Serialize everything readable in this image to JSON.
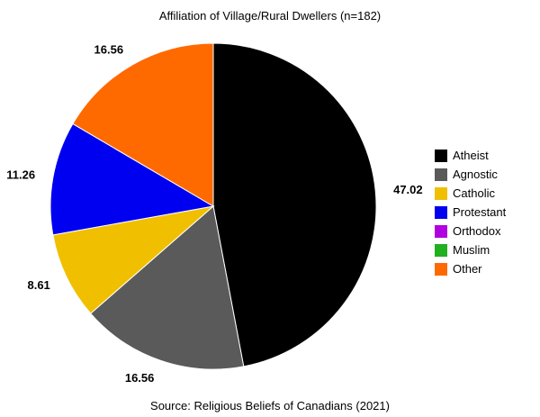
{
  "chart_data": {
    "type": "pie",
    "title": "Affiliation of Village/Rural Dwellers (n=182)",
    "caption": "Source: Religious Beliefs of Canadians (2021)",
    "legend_position": "right",
    "slices": [
      {
        "label": "Atheist",
        "value": 47.02,
        "color": "#000000"
      },
      {
        "label": "Agnostic",
        "value": 16.56,
        "color": "#5a5a5a"
      },
      {
        "label": "Catholic",
        "value": 8.61,
        "color": "#f0c000"
      },
      {
        "label": "Protestant",
        "value": 11.26,
        "color": "#0000f0"
      },
      {
        "label": "Orthodox",
        "value": 0,
        "color": "#b000e0"
      },
      {
        "label": "Muslim",
        "value": 0,
        "color": "#20b020"
      },
      {
        "label": "Other",
        "value": 16.56,
        "color": "#ff6a00"
      }
    ]
  }
}
